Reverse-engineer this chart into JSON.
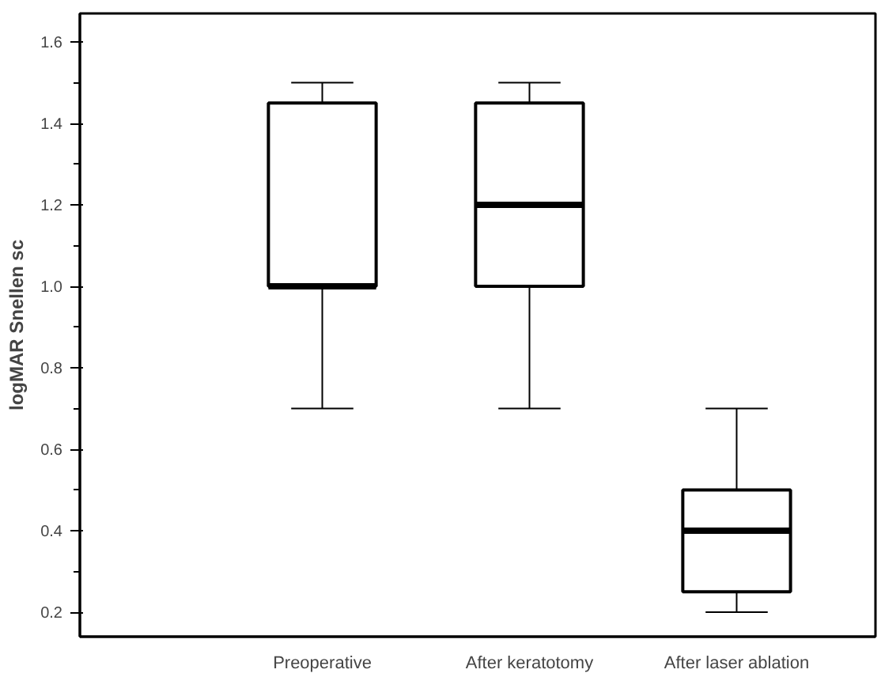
{
  "chart_data": {
    "type": "box",
    "ylabel": "logMAR Snellen sc",
    "categories": [
      "Preoperative",
      "After keratotomy",
      "After laser ablation"
    ],
    "boxes": [
      {
        "low": 0.7,
        "q1": 1.0,
        "median": 1.0,
        "q3": 1.45,
        "high": 1.5
      },
      {
        "low": 0.7,
        "q1": 1.0,
        "median": 1.2,
        "q3": 1.45,
        "high": 1.5
      },
      {
        "low": 0.2,
        "q1": 0.25,
        "median": 0.4,
        "q3": 0.5,
        "high": 0.7
      }
    ],
    "ylim": [
      0.14,
      1.67
    ],
    "yticks": [
      0.2,
      0.4,
      0.6,
      0.8,
      {
        "value": 1.0,
        "label": "1.0"
      },
      1.2,
      1.4,
      1.6
    ],
    "grid": false
  }
}
